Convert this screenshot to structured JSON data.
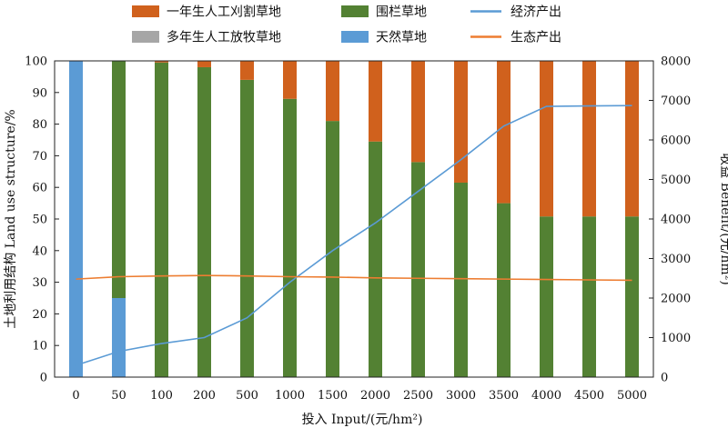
{
  "colors": {
    "annual_grass": "#d0611d",
    "perennial_grass": "#a6a6a6",
    "fenced_grass": "#538133",
    "natural_grass": "#5b9bd5",
    "economic_output": "#5b9bd5",
    "ecological_output": "#ed7d31"
  },
  "chart_data": {
    "type": "bar",
    "stacked": true,
    "categories": [
      "0",
      "50",
      "100",
      "200",
      "500",
      "1000",
      "1500",
      "2000",
      "2500",
      "3000",
      "3500",
      "4000",
      "4500",
      "5000"
    ],
    "xlabel": "投入 Input/(元/hm²)",
    "ylabel": "土地利用结构 Land use structure/%",
    "ylabel_right": "收益 Benefit/(元/hm²)",
    "ylim": [
      0,
      100
    ],
    "ylim_right": [
      0,
      8000
    ],
    "yticks": [
      "0",
      "10",
      "20",
      "30",
      "40",
      "50",
      "60",
      "70",
      "80",
      "90",
      "100"
    ],
    "yticks_right": [
      "0",
      "1000",
      "2000",
      "3000",
      "4000",
      "5000",
      "6000",
      "7000",
      "8000"
    ],
    "series": [
      {
        "name": "天然草地",
        "kind": "bar",
        "color": "#5b9bd5",
        "values": [
          100,
          25,
          0,
          0,
          0,
          0,
          0,
          0,
          0,
          0,
          0,
          0,
          0,
          0
        ]
      },
      {
        "name": "围栏草地",
        "kind": "bar",
        "color": "#538133",
        "values": [
          0,
          75,
          99.5,
          98,
          94,
          88,
          81,
          74.5,
          68,
          61.5,
          55,
          50.8,
          50.8,
          50.8
        ]
      },
      {
        "name": "多年生人工放牧草地",
        "kind": "bar",
        "color": "#a6a6a6",
        "values": [
          0,
          0,
          0,
          0,
          0,
          0,
          0,
          0,
          0,
          0,
          0,
          0,
          0,
          0
        ]
      },
      {
        "name": "一年生人工刈割草地",
        "kind": "bar",
        "color": "#d0611d",
        "values": [
          0,
          0,
          0.5,
          2,
          6,
          12,
          19,
          25.5,
          32,
          38.5,
          45,
          49.2,
          49.2,
          49.2
        ]
      },
      {
        "name": "经济产出",
        "kind": "line",
        "axis": "right",
        "color": "#5b9bd5",
        "values": [
          300,
          650,
          850,
          1000,
          1500,
          2400,
          3200,
          3900,
          4700,
          5500,
          6350,
          6850,
          6860,
          6870
        ]
      },
      {
        "name": "生态产出",
        "kind": "line",
        "axis": "right",
        "color": "#ed7d31",
        "values": [
          2480,
          2540,
          2560,
          2570,
          2560,
          2540,
          2530,
          2510,
          2500,
          2490,
          2480,
          2470,
          2460,
          2450
        ]
      }
    ],
    "legend": {
      "position": "top",
      "entries": [
        "一年生人工刈割草地",
        "围栏草地",
        "经济产出",
        "多年生人工放牧草地",
        "天然草地",
        "生态产出"
      ]
    },
    "grid": false
  }
}
